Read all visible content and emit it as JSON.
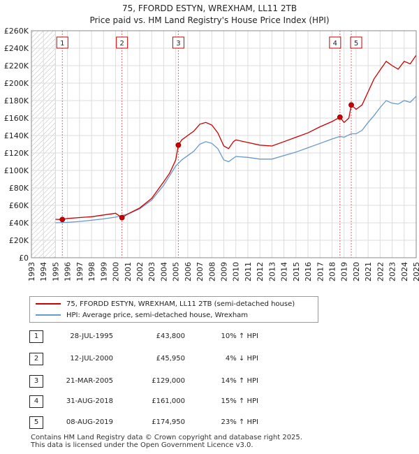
{
  "title": "75, FFORDD ESTYN, WREXHAM, LL11 2TB",
  "subtitle": "Price paid vs. HM Land Registry's House Price Index (HPI)",
  "chart_data": {
    "type": "line",
    "xlim": [
      1993,
      2025
    ],
    "ylim": [
      0,
      260000
    ],
    "y_ticks": [
      0,
      20000,
      40000,
      60000,
      80000,
      100000,
      120000,
      140000,
      160000,
      180000,
      200000,
      220000,
      240000,
      260000
    ],
    "y_tick_labels": [
      "£0",
      "£20K",
      "£40K",
      "£60K",
      "£80K",
      "£100K",
      "£120K",
      "£140K",
      "£160K",
      "£180K",
      "£200K",
      "£220K",
      "£240K",
      "£260K"
    ],
    "x_ticks": [
      1993,
      1994,
      1995,
      1996,
      1997,
      1998,
      1999,
      2000,
      2001,
      2002,
      2003,
      2004,
      2005,
      2006,
      2007,
      2008,
      2009,
      2010,
      2011,
      2012,
      2013,
      2014,
      2015,
      2016,
      2017,
      2018,
      2019,
      2020,
      2021,
      2022,
      2023,
      2024,
      2025
    ],
    "x_tick_labels": [
      "1993",
      "1994",
      "1995",
      "1996",
      "1997",
      "1998",
      "1999",
      "2000",
      "2001",
      "2002",
      "2003",
      "2004",
      "2005",
      "2006",
      "2007",
      "2008",
      "2009",
      "2010",
      "2011",
      "2012",
      "2013",
      "2014",
      "2015",
      "2016",
      "2017",
      "2018",
      "2019",
      "2020",
      "2021",
      "2022",
      "2023",
      "2024",
      "2025"
    ],
    "hatch_before": 1995.0,
    "series": [
      {
        "name": "75, FFORDD ESTYN, WREXHAM, LL11 2TB (semi-detached house)",
        "color": "#cc0000",
        "x": [
          1995.0,
          1995.57,
          1996,
          1997,
          1998,
          1999,
          2000,
          2000.53,
          2001,
          2002,
          2003,
          2004,
          2004.5,
          2005.0,
          2005.22,
          2005.5,
          2006,
          2006.5,
          2007,
          2007.5,
          2008,
          2008.5,
          2009,
          2009.4,
          2009.8,
          2010,
          2011,
          2012,
          2013,
          2014,
          2015,
          2016,
          2017,
          2018,
          2018.66,
          2019.0,
          2019.4,
          2019.6,
          2020,
          2020.5,
          2021,
          2021.5,
          2022,
          2022.5,
          2023,
          2023.5,
          2024,
          2024.5,
          2025
        ],
        "y": [
          44000,
          43800,
          45000,
          46000,
          47000,
          49000,
          51000,
          45950,
          50000,
          57000,
          68000,
          87000,
          97000,
          112000,
          129000,
          135000,
          140000,
          145000,
          153000,
          155000,
          152000,
          143000,
          128000,
          125000,
          133000,
          135000,
          132000,
          129000,
          128000,
          133000,
          138000,
          143000,
          150000,
          156000,
          161000,
          155000,
          160000,
          174950,
          170000,
          175000,
          190000,
          205000,
          215000,
          225000,
          220000,
          216000,
          225000,
          222000,
          232000
        ]
      },
      {
        "name": "HPI: Average price, semi-detached house, Wrexham",
        "color": "#6699cc",
        "x": [
          1995.0,
          1996,
          1997,
          1998,
          1999,
          2000,
          2001,
          2002,
          2003,
          2004,
          2004.5,
          2005,
          2005.5,
          2006,
          2006.5,
          2007,
          2007.5,
          2008,
          2008.5,
          2009,
          2009.4,
          2009.8,
          2010,
          2011,
          2012,
          2013,
          2014,
          2015,
          2016,
          2017,
          2018,
          2018.66,
          2019,
          2019.6,
          2020,
          2020.5,
          2021,
          2021.5,
          2022,
          2022.5,
          2023,
          2023.5,
          2024,
          2024.5,
          2025
        ],
        "y": [
          40000,
          40500,
          41500,
          43000,
          44500,
          46500,
          50000,
          56000,
          66000,
          83000,
          94000,
          105000,
          112000,
          117000,
          122000,
          130000,
          133000,
          131000,
          125000,
          112000,
          110000,
          114000,
          116000,
          115000,
          113000,
          113000,
          117000,
          121000,
          126000,
          131000,
          136000,
          139000,
          138000,
          142000,
          142000,
          146000,
          155000,
          163000,
          172000,
          180000,
          177000,
          176000,
          180000,
          178000,
          185000
        ]
      }
    ],
    "sales": [
      {
        "label": "1",
        "x": 1995.57,
        "y": 43800
      },
      {
        "label": "2",
        "x": 2000.53,
        "y": 45950
      },
      {
        "label": "3",
        "x": 2005.22,
        "y": 129000
      },
      {
        "label": "4",
        "x": 2018.66,
        "y": 161000
      },
      {
        "label": "5",
        "x": 2019.6,
        "y": 174950
      }
    ]
  },
  "legend": {
    "property": "75, FFORDD ESTYN, WREXHAM, LL11 2TB (semi-detached house)",
    "hpi": "HPI: Average price, semi-detached house, Wrexham",
    "property_color": "#cc0000",
    "hpi_color": "#6699cc"
  },
  "transactions": [
    {
      "num": "1",
      "date": "28-JUL-1995",
      "price": "£43,800",
      "hpi": "10% ↑ HPI"
    },
    {
      "num": "2",
      "date": "12-JUL-2000",
      "price": "£45,950",
      "hpi": "4% ↓ HPI"
    },
    {
      "num": "3",
      "date": "21-MAR-2005",
      "price": "£129,000",
      "hpi": "14% ↑ HPI"
    },
    {
      "num": "4",
      "date": "31-AUG-2018",
      "price": "£161,000",
      "hpi": "15% ↑ HPI"
    },
    {
      "num": "5",
      "date": "08-AUG-2019",
      "price": "£174,950",
      "hpi": "23% ↑ HPI"
    }
  ],
  "footer": {
    "line1": "Contains HM Land Registry data © Crown copyright and database right 2025.",
    "line2": "This data is licensed under the Open Government Licence v3.0."
  }
}
